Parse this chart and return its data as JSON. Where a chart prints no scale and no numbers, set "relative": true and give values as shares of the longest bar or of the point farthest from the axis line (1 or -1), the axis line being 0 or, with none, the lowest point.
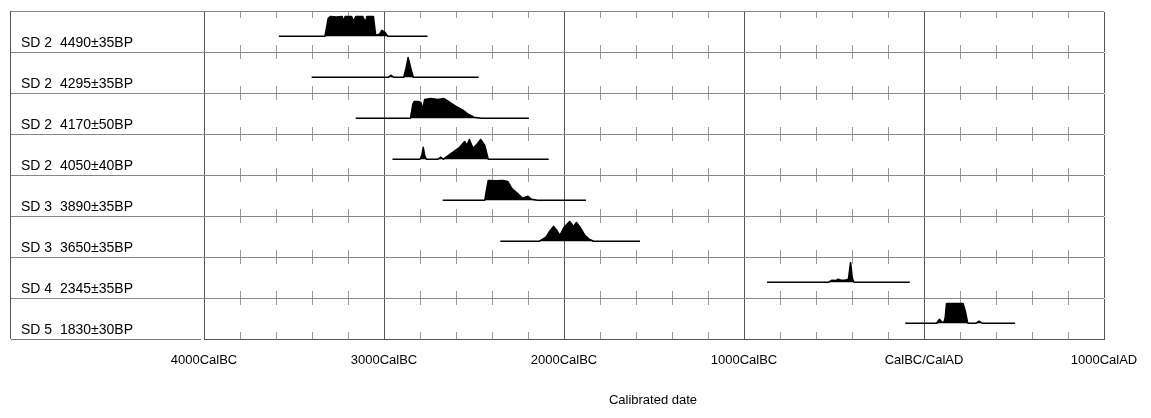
{
  "chart_data": [
    {
      "type": "area",
      "title": "SD 2  4490±35BP",
      "color": "#000000",
      "relative": true,
      "grid": "x",
      "tick_labels": false,
      "xlim": [
        -4000,
        1000
      ],
      "x": [
        -3584,
        -3328,
        -3310,
        -3297,
        -3265,
        -3232,
        -3225,
        -3216,
        -3181,
        -3168,
        -3157,
        -3119,
        -3103,
        -3095,
        -3059,
        -3046,
        -3025,
        -3011,
        -2995,
        -2979,
        -2758
      ],
      "values": [
        0,
        0,
        0.9,
        1,
        0.97,
        1,
        0.75,
        1,
        1,
        0.75,
        1,
        1,
        0.7,
        1,
        1,
        0.05,
        0.1,
        0.3,
        0.2,
        0,
        0
      ]
    },
    {
      "type": "area",
      "title": "SD 2  4295±35BP",
      "color": "#000000",
      "relative": true,
      "grid": "x",
      "tick_labels": false,
      "xlim": [
        -4000,
        1000
      ],
      "x": [
        -3402,
        -2975,
        -2961,
        -2947,
        -2890,
        -2879,
        -2866,
        -2847,
        -2837,
        -2474
      ],
      "values": [
        0,
        0,
        0.1,
        0,
        0,
        0.4,
        1,
        0.3,
        0,
        0
      ]
    },
    {
      "type": "area",
      "title": "SD 2  4170±50BP",
      "color": "#000000",
      "relative": true,
      "grid": "x",
      "tick_labels": false,
      "xlim": [
        -4000,
        1000
      ],
      "x": [
        -3157,
        -2853,
        -2840,
        -2832,
        -2810,
        -2795,
        -2786,
        -2774,
        -2740,
        -2700,
        -2670,
        -2650,
        -2626,
        -2600,
        -2560,
        -2532,
        -2500,
        -2458,
        -2195
      ],
      "values": [
        0,
        0,
        0.7,
        0.85,
        0.85,
        0.8,
        0.45,
        0.95,
        1,
        0.95,
        1,
        0.9,
        0.75,
        0.6,
        0.4,
        0.2,
        0.05,
        0,
        0
      ]
    },
    {
      "type": "area",
      "title": "SD 2  4050±40BP",
      "color": "#000000",
      "relative": true,
      "grid": "x",
      "tick_labels": false,
      "xlim": [
        -4000,
        1000
      ],
      "x": [
        -2953,
        -2800,
        -2790,
        -2782,
        -2774,
        -2765,
        -2700,
        -2684,
        -2670,
        -2626,
        -2580,
        -2552,
        -2540,
        -2526,
        -2505,
        -2480,
        -2463,
        -2440,
        -2421,
        -2085
      ],
      "values": [
        0,
        0,
        0.2,
        0.6,
        0.2,
        0,
        0,
        0.1,
        0,
        0.3,
        0.6,
        0.9,
        0.7,
        1,
        0.55,
        0.8,
        1,
        0.7,
        0,
        0
      ]
    },
    {
      "type": "area",
      "title": "SD 3  3890±35BP",
      "color": "#000000",
      "relative": true,
      "grid": "x",
      "tick_labels": false,
      "xlim": [
        -4000,
        1000
      ],
      "x": [
        -2674,
        -2440,
        -2433,
        -2421,
        -2380,
        -2340,
        -2313,
        -2290,
        -2253,
        -2230,
        -2200,
        -2180,
        -2147,
        -1878
      ],
      "values": [
        0,
        0,
        0.4,
        1,
        0.98,
        1,
        0.95,
        0.6,
        0.3,
        0.1,
        0.2,
        0.05,
        0,
        0
      ]
    },
    {
      "type": "area",
      "title": "SD 3  3650±35BP",
      "color": "#000000",
      "relative": true,
      "grid": "x",
      "tick_labels": false,
      "xlim": [
        -4000,
        1000
      ],
      "x": [
        -2354,
        -2137,
        -2100,
        -2080,
        -2058,
        -2040,
        -2023,
        -2000,
        -1968,
        -1947,
        -1931,
        -1910,
        -1884,
        -1860,
        -1836,
        -1578
      ],
      "values": [
        0,
        0,
        0.2,
        0.5,
        0.75,
        0.55,
        0.3,
        0.7,
        1,
        0.75,
        0.95,
        0.7,
        0.3,
        0.1,
        0,
        0
      ]
    },
    {
      "type": "area",
      "title": "SD 4  2345±35BP",
      "color": "#000000",
      "relative": true,
      "grid": "x",
      "tick_labels": false,
      "xlim": [
        -4000,
        1000
      ],
      "x": [
        -872,
        -530,
        -511,
        -490,
        -478,
        -460,
        -440,
        -420,
        -408,
        -398,
        -389,
        -79
      ],
      "values": [
        0,
        0,
        0.1,
        0.08,
        0.15,
        0.1,
        0.1,
        0.15,
        1,
        0.2,
        0,
        0
      ]
    },
    {
      "type": "area",
      "title": "SD 5  1830±30BP",
      "xlabel": "Calibrated date",
      "color": "#000000",
      "relative": true,
      "grid": "x",
      "tick_labels": "x",
      "xlim": [
        -4000,
        1000
      ],
      "xticks": [
        {
          "value": -4000,
          "label": "4000CalBC"
        },
        {
          "value": -3800,
          "label": null
        },
        {
          "value": -3600,
          "label": null
        },
        {
          "value": -3400,
          "label": null
        },
        {
          "value": -3200,
          "label": null
        },
        {
          "value": -3000,
          "label": "3000CalBC"
        },
        {
          "value": -2800,
          "label": null
        },
        {
          "value": -2600,
          "label": null
        },
        {
          "value": -2400,
          "label": null
        },
        {
          "value": -2200,
          "label": null
        },
        {
          "value": -2000,
          "label": "2000CalBC"
        },
        {
          "value": -1800,
          "label": null
        },
        {
          "value": -1600,
          "label": null
        },
        {
          "value": -1400,
          "label": null
        },
        {
          "value": -1200,
          "label": null
        },
        {
          "value": -1000,
          "label": "1000CalBC"
        },
        {
          "value": -800,
          "label": null
        },
        {
          "value": -600,
          "label": null
        },
        {
          "value": -400,
          "label": null
        },
        {
          "value": -200,
          "label": null
        },
        {
          "value": 0,
          "label": "CalBC/CalAD"
        },
        {
          "value": 200,
          "label": null
        },
        {
          "value": 400,
          "label": null
        },
        {
          "value": 600,
          "label": null
        },
        {
          "value": 800,
          "label": null
        },
        {
          "value": 1000,
          "label": "1000CalAD"
        }
      ],
      "x": [
        -104,
        70,
        86,
        100,
        111,
        118,
        125,
        140,
        217,
        230,
        243,
        290,
        306,
        322,
        506
      ],
      "values": [
        0,
        0,
        0.2,
        0.05,
        0.05,
        0.3,
        1,
        1,
        1,
        0.6,
        0,
        0,
        0.1,
        0,
        0
      ]
    }
  ]
}
